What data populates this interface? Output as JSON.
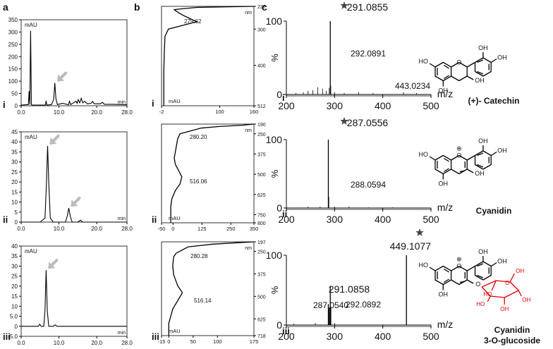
{
  "panel_letters": {
    "a": "a",
    "b": "b",
    "c": "c"
  },
  "row_labels": [
    "i",
    "ii",
    "iii"
  ],
  "hplc": {
    "y_unit": "mAU",
    "x_unit": "min",
    "xticks": [
      "0.0",
      "10.0",
      "20.0",
      "28.0"
    ],
    "xlim": [
      0,
      28
    ],
    "rows": [
      {
        "yticks": [
          "0",
          "50",
          "100",
          "150",
          "200",
          "250",
          "300",
          "350"
        ],
        "ylim": [
          0,
          350
        ]
      },
      {
        "yticks": [
          "0",
          "5",
          "10",
          "15",
          "20",
          "25",
          "30",
          "35",
          "40",
          "45"
        ],
        "ylim": [
          0,
          45
        ]
      },
      {
        "yticks": [
          "-5.0",
          "0",
          "5.0",
          "10",
          "15",
          "20",
          "25",
          "30",
          "35",
          "40"
        ],
        "ylim": [
          -5,
          40
        ]
      }
    ]
  },
  "uv": {
    "y_unit": "nm",
    "x_unit": "mAU",
    "rows": [
      {
        "xticks": [
          "-2",
          "100",
          "160"
        ],
        "xlim": [
          -2,
          160
        ],
        "yticks": [
          "237",
          "300",
          "400",
          "512"
        ],
        "ylim": [
          237,
          512
        ],
        "peaks": [
          "279.62"
        ]
      },
      {
        "xticks": [
          "-50",
          "0",
          "125",
          "250",
          "350"
        ],
        "xlim": [
          -50,
          350
        ],
        "yticks": [
          "190",
          "250",
          "375",
          "500",
          "625",
          "750",
          "800"
        ],
        "ylim": [
          190,
          800
        ],
        "peaks": [
          "280.20",
          "516.06"
        ]
      },
      {
        "xticks": [
          "-15",
          "0",
          "50",
          "100",
          "175"
        ],
        "xlim": [
          -15,
          175
        ],
        "yticks": [
          "197",
          "250",
          "375",
          "500",
          "625",
          "718"
        ],
        "ylim": [
          197,
          718
        ],
        "peaks": [
          "280.28",
          "516.14"
        ]
      }
    ]
  },
  "ms": {
    "y_unit": "%",
    "x_unit": "m/z",
    "xticks": [
      "200",
      "300",
      "400",
      "500"
    ],
    "xlim": [
      200,
      500
    ],
    "ytick_labels": [
      "0",
      "100"
    ],
    "rows": [
      {
        "labels": [
          "291.0855",
          "292.0891",
          "443.0234"
        ],
        "compound": "(+)- Catechin"
      },
      {
        "labels": [
          "287.0556",
          "288.0594"
        ],
        "compound": "Cyanidin"
      },
      {
        "labels": [
          "291.0858",
          "287.0540",
          "292.0892",
          "449.1077"
        ],
        "compound_line1": "Cyanidin",
        "compound_line2": "3-O-glucoside"
      }
    ]
  },
  "structure_atoms": {
    "ho": "HO",
    "oh": "OH",
    "o": "O",
    "o_plus": "⊕"
  },
  "chart_data": [
    {
      "type": "line",
      "title": "",
      "panel": "a-i",
      "xlabel": "min",
      "ylabel": "mAU",
      "xlim": [
        0,
        28
      ],
      "ylim": [
        0,
        350
      ],
      "series": [
        {
          "x": [
            0,
            1.9,
            2.1,
            2.3,
            2.5,
            2.7,
            2.9,
            3.2,
            5,
            6.4,
            6.6,
            6.8,
            8,
            8.6,
            8.9,
            9.2,
            9.6,
            11,
            12.5,
            12.8,
            13.1,
            14.5,
            14.8,
            15.1,
            15.5,
            15.9,
            16.3,
            16.8,
            17.5,
            18.5,
            18.9,
            19.3,
            21,
            21.5,
            22,
            24,
            28
          ],
          "y": [
            3,
            5,
            60,
            5,
            305,
            5,
            3,
            3,
            3,
            3,
            20,
            3,
            5,
            25,
            93,
            28,
            5,
            10,
            4,
            18,
            5,
            18,
            10,
            25,
            12,
            30,
            12,
            18,
            8,
            10,
            18,
            8,
            8,
            14,
            6,
            6,
            4
          ]
        }
      ],
      "annotations": [
        "arrow at 9.0 min"
      ]
    },
    {
      "type": "line",
      "title": "",
      "panel": "b-i",
      "xlabel": "mAU",
      "ylabel": "nm",
      "xlim": [
        -2,
        160
      ],
      "ylim": [
        237,
        512
      ],
      "series": [
        {
          "x": [
            160,
            60,
            20,
            28,
            40,
            60,
            10,
            4,
            3,
            2,
            2,
            2
          ],
          "y": [
            237,
            240,
            246,
            255,
            265,
            279.6,
            300,
            320,
            360,
            420,
            470,
            512
          ]
        }
      ]
    },
    {
      "type": "bar",
      "title": "",
      "panel": "c-i",
      "xlabel": "m/z",
      "ylabel": "%",
      "xlim": [
        200,
        500
      ],
      "ylim": [
        0,
        100
      ],
      "categories": [
        220,
        235,
        245,
        255,
        265,
        275,
        283,
        289,
        291.0855,
        292.0891,
        300,
        320,
        350,
        380,
        443.0234,
        470
      ],
      "values": [
        2,
        3,
        5,
        6,
        10,
        8,
        5,
        9,
        100,
        12,
        3,
        2,
        3,
        2,
        3,
        2
      ]
    },
    {
      "type": "line",
      "title": "",
      "panel": "a-ii",
      "xlabel": "min",
      "ylabel": "mAU",
      "xlim": [
        0,
        28
      ],
      "ylim": [
        0,
        45
      ],
      "series": [
        {
          "x": [
            0,
            5,
            6.3,
            6.7,
            7.0,
            7.3,
            7.7,
            8.5,
            10,
            11.7,
            12.2,
            12.6,
            13.0,
            13.5,
            15,
            15.7,
            16.2,
            28
          ],
          "y": [
            0,
            0,
            2,
            20,
            38,
            20,
            2,
            0,
            0,
            0,
            3,
            7,
            3,
            0,
            0,
            1,
            0,
            0
          ]
        }
      ],
      "annotations": [
        "arrow at 7.0 min",
        "arrow at 12.6 min"
      ]
    },
    {
      "type": "line",
      "title": "",
      "panel": "b-ii",
      "xlabel": "mAU",
      "ylabel": "nm",
      "xlim": [
        -50,
        350
      ],
      "ylim": [
        190,
        800
      ],
      "series": [
        {
          "x": [
            350,
            300,
            200,
            120,
            30,
            20,
            15,
            10,
            5,
            10,
            25,
            38,
            30,
            10,
            -5,
            -10,
            -10
          ],
          "y": [
            190,
            197,
            205,
            215,
            250,
            280.2,
            320,
            360,
            400,
            440,
            480,
            516,
            560,
            600,
            650,
            700,
            800
          ]
        }
      ]
    },
    {
      "type": "bar",
      "title": "",
      "panel": "c-ii",
      "xlabel": "m/z",
      "ylabel": "%",
      "xlim": [
        200,
        500
      ],
      "ylim": [
        0,
        100
      ],
      "categories": [
        245,
        270,
        287.0556,
        288.0594,
        300,
        330,
        370,
        420
      ],
      "values": [
        2,
        2,
        100,
        16,
        2,
        2,
        1,
        1
      ]
    },
    {
      "type": "line",
      "title": "",
      "panel": "a-iii",
      "xlabel": "min",
      "ylabel": "mAU",
      "xlim": [
        0,
        28
      ],
      "ylim": [
        -5,
        40
      ],
      "series": [
        {
          "x": [
            0,
            4.5,
            4.9,
            5.3,
            6.0,
            6.3,
            6.6,
            6.9,
            7.3,
            8,
            8.5,
            9.0,
            9.5,
            28
          ],
          "y": [
            0,
            0,
            1,
            0,
            0,
            8,
            28,
            8,
            0,
            0,
            0,
            0.7,
            0,
            0
          ]
        }
      ],
      "annotations": [
        "arrow at 6.6 min"
      ]
    },
    {
      "type": "line",
      "title": "",
      "panel": "b-iii",
      "xlabel": "mAU",
      "ylabel": "nm",
      "xlim": [
        -15,
        175
      ],
      "ylim": [
        197,
        718
      ],
      "series": [
        {
          "x": [
            175,
            140,
            90,
            40,
            15,
            10,
            8,
            10,
            18,
            28,
            20,
            8,
            0,
            0
          ],
          "y": [
            197,
            202,
            210,
            225,
            260,
            280.3,
            330,
            380,
            440,
            480,
            516.1,
            570,
            650,
            718
          ]
        }
      ]
    },
    {
      "type": "bar",
      "title": "",
      "panel": "c-iii",
      "xlabel": "m/z",
      "ylabel": "%",
      "xlim": [
        200,
        500
      ],
      "ylim": [
        0,
        100
      ],
      "categories": [
        215,
        260,
        287.054,
        289,
        291.0858,
        292.0892,
        300,
        449.1077
      ],
      "values": [
        2,
        3,
        30,
        25,
        55,
        25,
        3,
        100
      ]
    }
  ]
}
